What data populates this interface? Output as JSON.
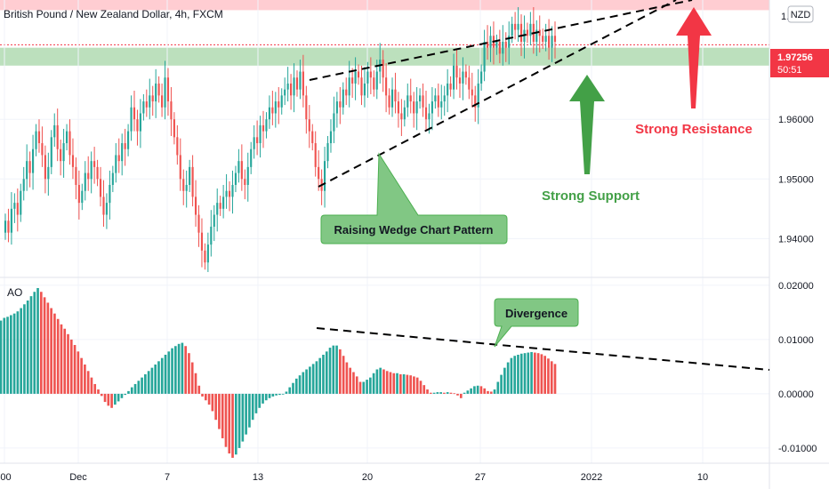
{
  "colors": {
    "up": "#26a69a",
    "down": "#ef5350",
    "support_zone": "#a5d6a7",
    "resistance_zone": "#ffcdd2",
    "support_arrow": "#43a047",
    "resistance_arrow": "#f23645",
    "callout_fill": "#81c784",
    "price_badge": "#f23645",
    "trendline": "#000000"
  },
  "chart_data": [
    {
      "type": "candlestick",
      "title": "British Pound / New Zealand Dollar, 4h, FXCM",
      "currency_badge": "NZD",
      "current_price": "1.97256",
      "countdown": "50:51",
      "y_ticks": [
        "1.94000",
        "1.95000",
        "1.96000"
      ],
      "y_top_label": "1.9",
      "ylim": [
        1.9335,
        1.98
      ],
      "x_ticks": [
        ":00",
        "Dec",
        "7",
        "13",
        "20",
        "27",
        "2022",
        "10"
      ],
      "support_zone": [
        1.969,
        1.972
      ],
      "resistance_zone": [
        1.9783,
        1.98
      ],
      "series_close": [
        1.943,
        1.941,
        1.945,
        1.946,
        1.944,
        1.948,
        1.95,
        1.953,
        1.951,
        1.955,
        1.958,
        1.956,
        1.954,
        1.95,
        1.952,
        1.957,
        1.959,
        1.955,
        1.953,
        1.956,
        1.958,
        1.954,
        1.952,
        1.949,
        1.946,
        1.948,
        1.951,
        1.95,
        1.953,
        1.952,
        1.95,
        1.947,
        1.944,
        1.946,
        1.949,
        1.951,
        1.954,
        1.953,
        1.956,
        1.955,
        1.958,
        1.962,
        1.96,
        1.958,
        1.961,
        1.963,
        1.962,
        1.964,
        1.963,
        1.966,
        1.964,
        1.962,
        1.967,
        1.963,
        1.96,
        1.957,
        1.954,
        1.95,
        1.948,
        1.949,
        1.952,
        1.947,
        1.944,
        1.941,
        1.938,
        1.936,
        1.939,
        1.942,
        1.944,
        1.946,
        1.945,
        1.947,
        1.948,
        1.947,
        1.949,
        1.951,
        1.953,
        1.95,
        1.949,
        1.952,
        1.955,
        1.957,
        1.956,
        1.959,
        1.958,
        1.96,
        1.962,
        1.961,
        1.963,
        1.962,
        1.964,
        1.965,
        1.966,
        1.964,
        1.967,
        1.965,
        1.968,
        1.964,
        1.96,
        1.958,
        1.956,
        1.952,
        1.95,
        1.948,
        1.953,
        1.956,
        1.958,
        1.961,
        1.963,
        1.962,
        1.965,
        1.964,
        1.967,
        1.966,
        1.968,
        1.967,
        1.964,
        1.966,
        1.968,
        1.967,
        1.965,
        1.968,
        1.97,
        1.967,
        1.964,
        1.962,
        1.965,
        1.963,
        1.961,
        1.96,
        1.962,
        1.964,
        1.963,
        1.961,
        1.963,
        1.964,
        1.962,
        1.96,
        1.961,
        1.963,
        1.964,
        1.962,
        1.963,
        1.964,
        1.966,
        1.965,
        1.969,
        1.967,
        1.966,
        1.968,
        1.967,
        1.965,
        1.964,
        1.962,
        1.966,
        1.968,
        1.973,
        1.972,
        1.974,
        1.972,
        1.973,
        1.971,
        1.973,
        1.972,
        1.974,
        1.976,
        1.975,
        1.976,
        1.973,
        1.975,
        1.974,
        1.976,
        1.973,
        1.975,
        1.974,
        1.973,
        1.974,
        1.972,
        1.974,
        1.973
      ],
      "ao": {
        "label": "AO",
        "y_ticks": [
          "0.02000",
          "0.01000",
          "0.00000",
          "-0.01000"
        ],
        "ylim": [
          -0.0128,
          0.0213
        ],
        "values": [
          0.0135,
          0.014,
          0.0142,
          0.0145,
          0.0148,
          0.0152,
          0.0158,
          0.0165,
          0.0172,
          0.018,
          0.0188,
          0.0195,
          0.0188,
          0.0178,
          0.0168,
          0.0158,
          0.0148,
          0.0138,
          0.0128,
          0.012,
          0.011,
          0.01,
          0.009,
          0.0078,
          0.0066,
          0.0054,
          0.0042,
          0.003,
          0.0018,
          0.0008,
          -0.0004,
          -0.0015,
          -0.0022,
          -0.0026,
          -0.002,
          -0.0014,
          -0.0008,
          -0.0002,
          0.0005,
          0.0012,
          0.0018,
          0.0024,
          0.003,
          0.0036,
          0.0042,
          0.0048,
          0.0054,
          0.006,
          0.0066,
          0.0072,
          0.0078,
          0.0084,
          0.0088,
          0.0092,
          0.0094,
          0.0088,
          0.0075,
          0.0058,
          0.0038,
          0.0015,
          -0.0005,
          -0.0012,
          -0.002,
          -0.0032,
          -0.0048,
          -0.0065,
          -0.0082,
          -0.0098,
          -0.011,
          -0.0118,
          -0.0112,
          -0.01,
          -0.0088,
          -0.0075,
          -0.0062,
          -0.0048,
          -0.0036,
          -0.0026,
          -0.0018,
          -0.0012,
          -0.0008,
          -0.0005,
          -0.0003,
          -0.0002,
          0.0,
          0.0004,
          0.0012,
          0.002,
          0.0028,
          0.0034,
          0.004,
          0.0045,
          0.005,
          0.0055,
          0.006,
          0.0066,
          0.0072,
          0.0078,
          0.0085,
          0.0089,
          0.0089,
          0.0082,
          0.007,
          0.0058,
          0.0048,
          0.004,
          0.0032,
          0.0022,
          0.0022,
          0.0026,
          0.003,
          0.0038,
          0.0045,
          0.0048,
          0.0045,
          0.0042,
          0.004,
          0.0038,
          0.0038,
          0.0036,
          0.0036,
          0.0035,
          0.0034,
          0.0032,
          0.003,
          0.0024,
          0.0016,
          0.0008,
          0.0002,
          0.0002,
          0.0003,
          0.0003,
          0.0002,
          0.0003,
          0.0002,
          0.0001,
          -0.0003,
          -0.0008,
          0.0002,
          0.0006,
          0.001,
          0.0014,
          0.0015,
          0.0014,
          0.001,
          0.0005,
          0.0004,
          0.0008,
          0.0022,
          0.0035,
          0.0048,
          0.0058,
          0.0066,
          0.007,
          0.0072,
          0.0074,
          0.0075,
          0.0076,
          0.0077,
          0.0076,
          0.0075,
          0.0073,
          0.007,
          0.0065,
          0.006,
          0.0055
        ]
      }
    }
  ],
  "callouts": {
    "wedge": "Raising Wedge Chart Pattern",
    "divergence": "Divergence"
  },
  "annotations": {
    "support": "Strong Support",
    "resistance": "Strong Resistance"
  }
}
